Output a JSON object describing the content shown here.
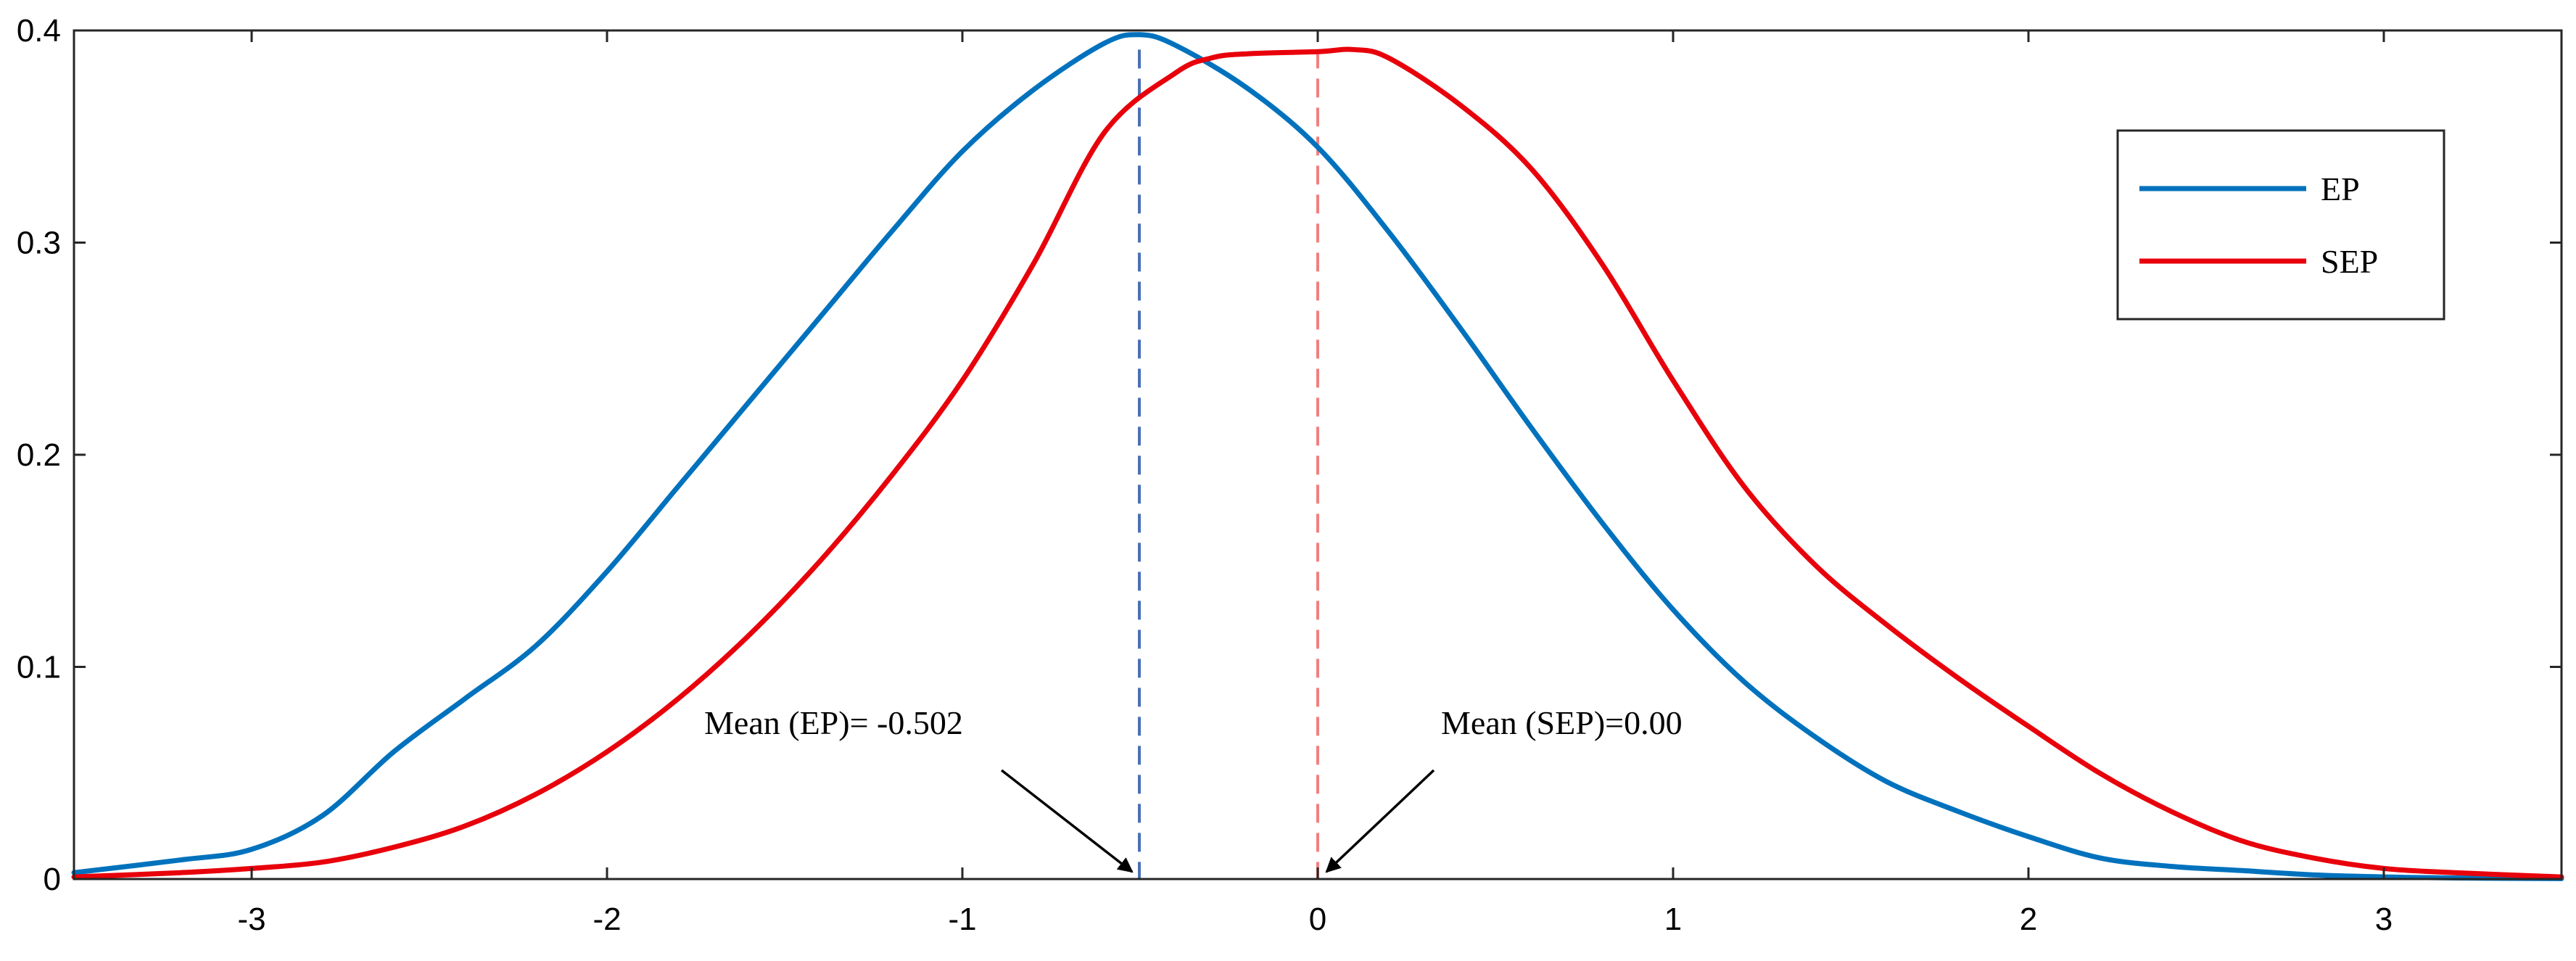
{
  "chart_data": {
    "type": "line",
    "title": "",
    "xlabel": "",
    "ylabel": "",
    "xlim": [
      -3.5,
      3.5
    ],
    "ylim": [
      0,
      0.4
    ],
    "grid": false,
    "legend_position": "top-right",
    "x_ticks": [
      {
        "value": -3,
        "label": "-3"
      },
      {
        "value": -2,
        "label": "-2"
      },
      {
        "value": -1,
        "label": "-1"
      },
      {
        "value": 0,
        "label": "0"
      },
      {
        "value": 1,
        "label": "1"
      },
      {
        "value": 2,
        "label": "2"
      },
      {
        "value": 3,
        "label": "3"
      }
    ],
    "y_ticks": [
      {
        "value": 0,
        "label": "0"
      },
      {
        "value": 0.1,
        "label": "0.1"
      },
      {
        "value": 0.2,
        "label": "0.2"
      },
      {
        "value": 0.3,
        "label": "0.3"
      },
      {
        "value": 0.4,
        "label": "0.4"
      }
    ],
    "series": [
      {
        "name": "EP",
        "color": "#0072bd",
        "x": [
          -3.5,
          -3.2,
          -3.0,
          -2.8,
          -2.6,
          -2.4,
          -2.2,
          -2.0,
          -1.8,
          -1.6,
          -1.4,
          -1.2,
          -1.0,
          -0.8,
          -0.6,
          -0.5,
          -0.4,
          -0.2,
          0.0,
          0.2,
          0.4,
          0.6,
          0.8,
          1.0,
          1.2,
          1.4,
          1.6,
          1.8,
          2.0,
          2.2,
          2.4,
          2.6,
          2.8,
          3.0,
          3.2,
          3.5
        ],
        "values": [
          0.003,
          0.009,
          0.014,
          0.03,
          0.06,
          0.085,
          0.11,
          0.145,
          0.185,
          0.225,
          0.265,
          0.305,
          0.343,
          0.372,
          0.394,
          0.398,
          0.393,
          0.373,
          0.345,
          0.305,
          0.26,
          0.213,
          0.168,
          0.127,
          0.093,
          0.067,
          0.046,
          0.032,
          0.02,
          0.01,
          0.006,
          0.004,
          0.002,
          0.001,
          0.0005,
          0.0002
        ]
      },
      {
        "name": "SEP",
        "color": "#e8000b",
        "x": [
          -3.5,
          -3.2,
          -3.0,
          -2.8,
          -2.6,
          -2.4,
          -2.2,
          -2.0,
          -1.8,
          -1.6,
          -1.4,
          -1.2,
          -1.0,
          -0.8,
          -0.6,
          -0.4,
          -0.3,
          -0.2,
          0.0,
          0.1,
          0.2,
          0.4,
          0.6,
          0.8,
          1.0,
          1.2,
          1.4,
          1.6,
          1.8,
          2.0,
          2.2,
          2.4,
          2.6,
          2.8,
          3.0,
          3.2,
          3.5
        ],
        "values": [
          0.001,
          0.003,
          0.005,
          0.008,
          0.015,
          0.025,
          0.04,
          0.06,
          0.085,
          0.115,
          0.15,
          0.19,
          0.235,
          0.29,
          0.352,
          0.38,
          0.387,
          0.389,
          0.39,
          0.391,
          0.387,
          0.365,
          0.335,
          0.29,
          0.235,
          0.185,
          0.148,
          0.12,
          0.095,
          0.072,
          0.05,
          0.032,
          0.018,
          0.01,
          0.005,
          0.003,
          0.001
        ]
      }
    ],
    "mean_lines": [
      {
        "series": "EP",
        "x": -0.502,
        "color": "#4a6fb5",
        "label": "Mean (EP)= -0.502"
      },
      {
        "series": "SEP",
        "x": 0.0,
        "color": "#f08080",
        "label": "Mean (SEP)=0.00"
      }
    ]
  }
}
